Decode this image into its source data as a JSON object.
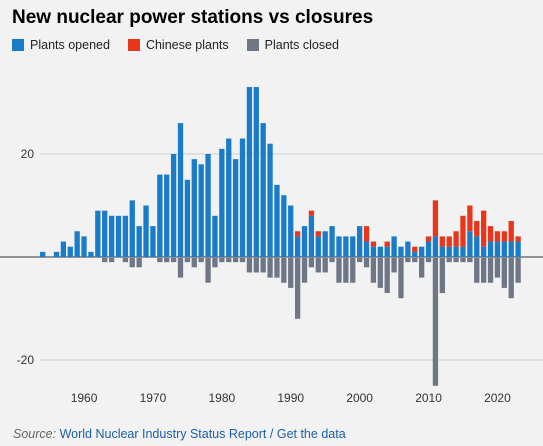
{
  "title": "New nuclear power stations vs closures",
  "legend": [
    {
      "label": "Plants opened",
      "color": "#1a7cc8"
    },
    {
      "label": "Chinese plants",
      "color": "#e8361c"
    },
    {
      "label": "Plants closed",
      "color": "#6f7685"
    }
  ],
  "source": {
    "label": "Source:",
    "publisher": "World Nuclear Industry Status Report",
    "separator": "/",
    "link": "Get the data"
  },
  "chart_data": {
    "type": "bar",
    "stacked": true,
    "x": [
      1954,
      1955,
      1956,
      1957,
      1958,
      1959,
      1960,
      1961,
      1962,
      1963,
      1964,
      1965,
      1966,
      1967,
      1968,
      1969,
      1970,
      1971,
      1972,
      1973,
      1974,
      1975,
      1976,
      1977,
      1978,
      1979,
      1980,
      1981,
      1982,
      1983,
      1984,
      1985,
      1986,
      1987,
      1988,
      1989,
      1990,
      1991,
      1992,
      1993,
      1994,
      1995,
      1996,
      1997,
      1998,
      1999,
      2000,
      2001,
      2002,
      2003,
      2004,
      2005,
      2006,
      2007,
      2008,
      2009,
      2010,
      2011,
      2012,
      2013,
      2014,
      2015,
      2016,
      2017,
      2018,
      2019,
      2020,
      2021,
      2022,
      2023
    ],
    "series": [
      {
        "name": "Plants opened",
        "color": "#1a7cc8",
        "values": [
          1,
          0,
          1,
          3,
          2,
          5,
          4,
          1,
          9,
          9,
          8,
          8,
          8,
          11,
          6,
          10,
          6,
          16,
          16,
          20,
          26,
          15,
          19,
          18,
          20,
          8,
          21,
          23,
          19,
          23,
          33,
          33,
          26,
          22,
          14,
          12,
          10,
          4,
          6,
          8,
          4,
          5,
          6,
          4,
          4,
          4,
          6,
          3,
          2,
          2,
          2,
          4,
          2,
          3,
          1,
          2,
          3,
          4,
          2,
          2,
          2,
          2,
          5,
          4,
          2,
          3,
          3,
          3,
          3,
          3
        ]
      },
      {
        "name": "Chinese plants",
        "color": "#e8361c",
        "values": [
          0,
          0,
          0,
          0,
          0,
          0,
          0,
          0,
          0,
          0,
          0,
          0,
          0,
          0,
          0,
          0,
          0,
          0,
          0,
          0,
          0,
          0,
          0,
          0,
          0,
          0,
          0,
          0,
          0,
          0,
          0,
          0,
          0,
          0,
          0,
          0,
          0,
          1,
          0,
          1,
          1,
          0,
          0,
          0,
          0,
          0,
          0,
          3,
          1,
          0,
          1,
          0,
          0,
          0,
          1,
          0,
          1,
          7,
          2,
          2,
          3,
          6,
          5,
          3,
          7,
          3,
          2,
          2,
          4,
          1
        ]
      },
      {
        "name": "Plants closed",
        "color": "#6f7685",
        "values": [
          0,
          0,
          0,
          0,
          0,
          0,
          0,
          0,
          0,
          -1,
          -1,
          0,
          -1,
          -2,
          -2,
          0,
          0,
          -1,
          -1,
          -1,
          -4,
          -1,
          -2,
          -1,
          -5,
          -2,
          -1,
          -1,
          -1,
          -1,
          -3,
          -3,
          -3,
          -4,
          -4,
          -5,
          -6,
          -12,
          -5,
          -2,
          -3,
          -3,
          -1,
          -5,
          -5,
          -5,
          -1,
          -2,
          -5,
          -6,
          -7,
          -3,
          -8,
          -1,
          -1,
          -4,
          -1,
          -25,
          -7,
          -1,
          -1,
          -1,
          -1,
          -5,
          -5,
          -5,
          -4,
          -6,
          -8,
          -5
        ]
      }
    ],
    "y_ticks": [
      20,
      -20
    ],
    "x_ticks": [
      1960,
      1970,
      1980,
      1990,
      2000,
      2010,
      2020
    ],
    "xlim": [
      1953.5,
      2023.5
    ],
    "ylim": [
      -25,
      33
    ],
    "grid": true,
    "legend_position": "top-left"
  }
}
